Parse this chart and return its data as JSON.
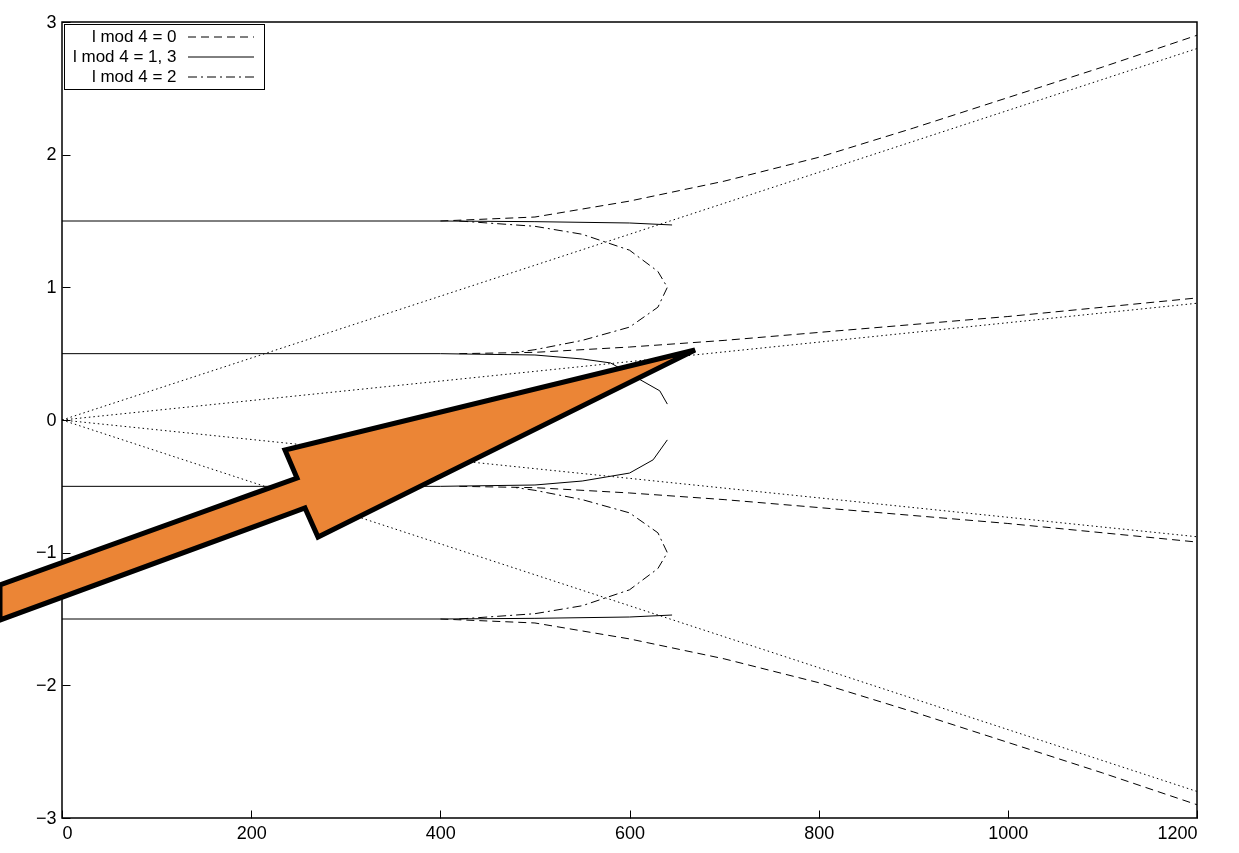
{
  "chart_data": {
    "type": "line",
    "xlim": [
      0,
      1200
    ],
    "ylim": [
      -3,
      3
    ],
    "xticks": [
      0,
      200,
      400,
      600,
      800,
      1000,
      1200
    ],
    "yticks": [
      -3,
      -2,
      -1,
      0,
      1,
      2,
      3
    ],
    "grid": false,
    "legend": "top left",
    "marker": "none",
    "series": [
      {
        "name": "l mod 4 = 0",
        "color": "#000000",
        "line_style": "dashed",
        "x": [
          400,
          500,
          600,
          700,
          800,
          900,
          1000,
          1100,
          1200
        ],
        "values": [
          1.5,
          1.53,
          1.65,
          1.8,
          1.98,
          2.2,
          2.43,
          2.66,
          2.9
        ]
      },
      {
        "color": "#000000",
        "line_style": "dashed",
        "x": [
          420,
          500,
          600,
          700,
          800,
          900,
          1000,
          1100,
          1200
        ],
        "values": [
          0.5,
          0.51,
          0.55,
          0.6,
          0.66,
          0.72,
          0.78,
          0.85,
          0.92
        ]
      },
      {
        "color": "#000000",
        "line_style": "dashed",
        "x": [
          420,
          500,
          600,
          700,
          800,
          900,
          1000,
          1100,
          1200
        ],
        "values": [
          -0.5,
          -0.51,
          -0.55,
          -0.6,
          -0.66,
          -0.72,
          -0.78,
          -0.85,
          -0.92
        ]
      },
      {
        "color": "#000000",
        "line_style": "dashed",
        "x": [
          400,
          500,
          600,
          700,
          800,
          900,
          1000,
          1100,
          1200
        ],
        "values": [
          -1.5,
          -1.53,
          -1.65,
          -1.8,
          -1.98,
          -2.2,
          -2.43,
          -2.66,
          -2.9
        ]
      },
      {
        "name": "l mod 4 = 1, 3",
        "color": "#000000",
        "line_style": "solid",
        "x": [
          0,
          400,
          500,
          600,
          645
        ],
        "values": [
          1.5,
          1.5,
          1.495,
          1.485,
          1.47
        ]
      },
      {
        "color": "#000000",
        "line_style": "solid",
        "x": [
          0,
          400,
          500,
          550,
          580,
          632,
          640
        ],
        "values": [
          0.5,
          0.5,
          0.49,
          0.46,
          0.43,
          0.22,
          0.12
        ]
      },
      {
        "color": "#000000",
        "line_style": "solid",
        "x": [
          0,
          400,
          500,
          550,
          600,
          625,
          640
        ],
        "values": [
          -0.5,
          -0.5,
          -0.49,
          -0.46,
          -0.4,
          -0.3,
          -0.15
        ]
      },
      {
        "color": "#000000",
        "line_style": "solid",
        "x": [
          0,
          400,
          500,
          600,
          645
        ],
        "values": [
          -1.5,
          -1.5,
          -1.495,
          -1.485,
          -1.47
        ]
      },
      {
        "name": "l mod 4 = 2",
        "color": "#000000",
        "line_style": "dashdot",
        "x": [
          420,
          500,
          550,
          600,
          630,
          640,
          630,
          600,
          550,
          500,
          480
        ],
        "values": [
          1.5,
          1.46,
          1.4,
          1.28,
          1.12,
          1.0,
          0.85,
          0.7,
          0.6,
          0.53,
          0.51
        ]
      },
      {
        "color": "#000000",
        "line_style": "dashdot",
        "x": [
          420,
          500,
          550,
          600,
          630,
          640,
          630,
          600,
          550,
          500,
          480
        ],
        "values": [
          -1.5,
          -1.46,
          -1.4,
          -1.28,
          -1.12,
          -1.0,
          -0.85,
          -0.7,
          -0.6,
          -0.53,
          -0.51
        ]
      },
      {
        "color": "#000000",
        "line_style": "dotted",
        "x": [
          0,
          1200
        ],
        "values": [
          0,
          2.8
        ]
      },
      {
        "color": "#000000",
        "line_style": "dotted",
        "x": [
          0,
          1200
        ],
        "values": [
          0,
          0.88
        ]
      },
      {
        "color": "#000000",
        "line_style": "dotted",
        "x": [
          0,
          1200
        ],
        "values": [
          0,
          -0.88
        ]
      },
      {
        "color": "#000000",
        "line_style": "dotted",
        "x": [
          0,
          1200
        ],
        "values": [
          0,
          -2.8
        ]
      }
    ]
  }
}
